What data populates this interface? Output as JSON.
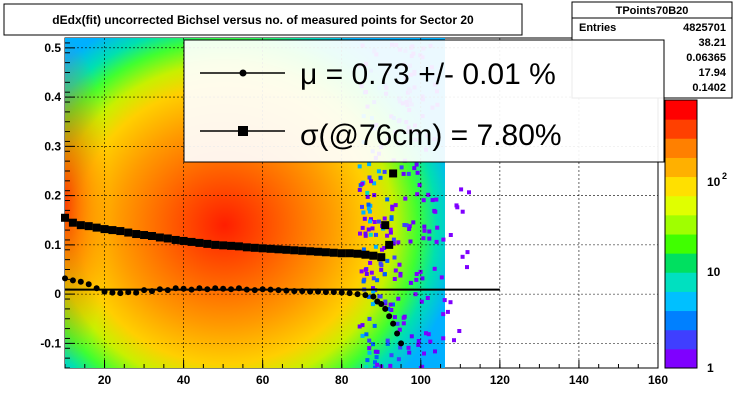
{
  "chart_data": {
    "type": "heatmap",
    "title": "dEdx(fit) uncorrected Bichsel versus no. of measured points for Sector 20",
    "xlim": [
      10,
      160
    ],
    "ylim": [
      -0.15,
      0.52
    ],
    "x_ticks": [
      "20",
      "40",
      "60",
      "80",
      "100",
      "120",
      "140",
      "160"
    ],
    "y_ticks": [
      "-0.1",
      "0",
      "0.1",
      "0.2",
      "0.3",
      "0.4",
      "0.5"
    ],
    "grid": true,
    "color_scale": {
      "type": "log",
      "tick_labels": [
        "1",
        "10",
        "10",
        "2"
      ],
      "colors": [
        "#7f00ff",
        "#3f3fff",
        "#0080ff",
        "#00c0ff",
        "#00e0c0",
        "#00e060",
        "#40ff00",
        "#a0ff00",
        "#e0ff00",
        "#ffe000",
        "#ffb000",
        "#ff8000",
        "#ff4000",
        "#ff0000"
      ]
    },
    "stats": {
      "name": "TPoints70B20",
      "rows": [
        {
          "label": "Entries",
          "value": "4825701"
        },
        {
          "label": "",
          "value": "38.21"
        },
        {
          "label": "",
          "value": "0.06365"
        },
        {
          "label": "",
          "value": "17.94"
        },
        {
          "label": "",
          "value": "0.1402"
        }
      ]
    },
    "legend": {
      "position": "top",
      "entries": [
        {
          "marker": "circle",
          "text": "μ  =  0.73 +/-  0.01 %"
        },
        {
          "marker": "square",
          "text": "σ(@76cm) =  7.80%"
        }
      ]
    },
    "series": [
      {
        "marker": "circle",
        "x": [
          10,
          12,
          14,
          16,
          18,
          20,
          22,
          24,
          26,
          28,
          30,
          32,
          34,
          36,
          38,
          40,
          42,
          44,
          46,
          48,
          50,
          52,
          54,
          56,
          58,
          60,
          62,
          64,
          66,
          68,
          70,
          72,
          74,
          76,
          78,
          80,
          82,
          84,
          86,
          88,
          89,
          90,
          91,
          92,
          93,
          94,
          95
        ],
        "y": [
          0.032,
          0.028,
          0.025,
          0.02,
          0.012,
          0.005,
          0.003,
          0.002,
          0.004,
          0.003,
          0.008,
          0.006,
          0.01,
          0.008,
          0.012,
          0.011,
          0.009,
          0.012,
          0.01,
          0.012,
          0.011,
          0.01,
          0.012,
          0.009,
          0.008,
          0.01,
          0.009,
          0.008,
          0.007,
          0.006,
          0.006,
          0.005,
          0.005,
          0.004,
          0.004,
          0.003,
          0.002,
          0.0,
          -0.002,
          -0.005,
          -0.015,
          -0.02,
          -0.03,
          -0.045,
          -0.06,
          -0.08,
          -0.1
        ]
      },
      {
        "marker": "square",
        "x": [
          10,
          12,
          14,
          16,
          18,
          20,
          22,
          24,
          26,
          28,
          30,
          32,
          34,
          36,
          38,
          40,
          42,
          44,
          46,
          48,
          50,
          52,
          54,
          56,
          58,
          60,
          62,
          64,
          66,
          68,
          70,
          72,
          74,
          76,
          78,
          80,
          82,
          84,
          86,
          88,
          90,
          91,
          92,
          93
        ],
        "y": [
          0.155,
          0.145,
          0.14,
          0.138,
          0.135,
          0.132,
          0.13,
          0.128,
          0.125,
          0.122,
          0.12,
          0.118,
          0.115,
          0.113,
          0.11,
          0.108,
          0.106,
          0.104,
          0.102,
          0.1,
          0.099,
          0.098,
          0.097,
          0.095,
          0.094,
          0.093,
          0.092,
          0.091,
          0.09,
          0.089,
          0.088,
          0.087,
          0.086,
          0.085,
          0.084,
          0.083,
          0.083,
          0.082,
          0.08,
          0.078,
          0.075,
          0.14,
          0.1,
          0.245
        ]
      },
      {
        "marker": "line",
        "x": [
          10,
          120
        ],
        "y": [
          0.009,
          0.009
        ]
      }
    ]
  }
}
